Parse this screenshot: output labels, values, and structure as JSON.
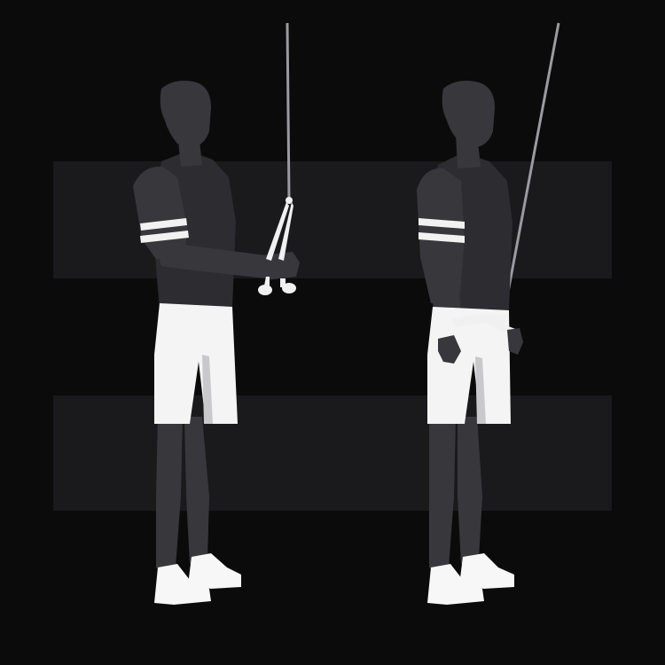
{
  "illustration": {
    "subject": "cable-triceps-pushdown-rope",
    "phases": [
      "start-position",
      "end-position"
    ]
  },
  "colors": {
    "background": "#0b0b0c",
    "band": "#1a1a1c",
    "body_skin": "#38383c",
    "body_shirt": "#2d2d31",
    "shorts": "#f4f4f4",
    "shorts_shadow": "#c9c9cc",
    "shoes": "#f7f7f7",
    "armband_stripe": "#f2f2f2",
    "cable": "#9a9aa0",
    "rope_attachment": "#f0f0f0"
  }
}
